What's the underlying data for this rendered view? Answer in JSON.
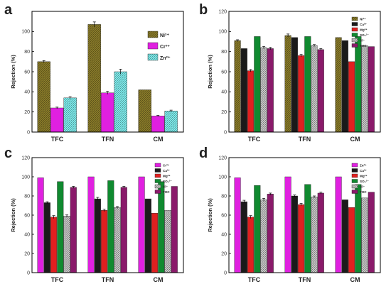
{
  "chart_data": [
    {
      "panel": "a",
      "type": "bar",
      "categories": [
        "TFC",
        "TFN",
        "CM"
      ],
      "ylabel": "Rejection (%)",
      "ylim": [
        0,
        120
      ],
      "yticks": [
        0,
        20,
        40,
        60,
        80,
        100
      ],
      "legend_position": "top-right",
      "series": [
        {
          "name": "Ni²⁺",
          "color": "#8b7d2a",
          "pattern": "hatch",
          "values": [
            70,
            107,
            42
          ],
          "errors": [
            1.0,
            2.5,
            0
          ]
        },
        {
          "name": "Cr³⁺",
          "color": "#e020e0",
          "pattern": "solid",
          "values": [
            24,
            39,
            16
          ],
          "errors": [
            0.8,
            1.5,
            0.5
          ]
        },
        {
          "name": "Zn²⁺",
          "color": "#80f0f0",
          "pattern": "hatch",
          "values": [
            34,
            60,
            21
          ],
          "errors": [
            1.2,
            2.5,
            0.8
          ]
        }
      ]
    },
    {
      "panel": "b",
      "type": "bar",
      "categories": [
        "TFC",
        "TFN",
        "CM"
      ],
      "ylabel": "Rejection (%)",
      "ylim": [
        0,
        120
      ],
      "yticks": [
        0,
        20,
        40,
        60,
        80,
        100,
        120
      ],
      "legend_position": "top-right",
      "series": [
        {
          "name": "Ni²⁺",
          "color": "#8b7d2a",
          "pattern": "hatch",
          "values": [
            91,
            96,
            94
          ],
          "errors": [
            0.8,
            1.5,
            0
          ]
        },
        {
          "name": "Ca²⁺",
          "color": "#1a1a1a",
          "pattern": "solid",
          "values": [
            83,
            94,
            91
          ],
          "errors": [
            0,
            0,
            0
          ]
        },
        {
          "name": "Mg²⁺",
          "color": "#e02020",
          "pattern": "solid",
          "values": [
            61,
            76,
            70
          ],
          "errors": [
            1.2,
            1.2,
            0
          ]
        },
        {
          "name": "SO₄²⁻",
          "color": "#108a30",
          "pattern": "solid",
          "values": [
            95,
            95,
            95
          ],
          "errors": [
            0,
            0,
            0
          ]
        },
        {
          "name": "Cl⁻",
          "color": "#c8c8c8",
          "pattern": "cross",
          "values": [
            84,
            86,
            86
          ],
          "errors": [
            1.2,
            1.0,
            0
          ]
        },
        {
          "name": "TOC",
          "color": "#8a1a6a",
          "pattern": "solid",
          "values": [
            83,
            82,
            85
          ],
          "errors": [
            1.2,
            1.0,
            0
          ]
        }
      ]
    },
    {
      "panel": "c",
      "type": "bar",
      "categories": [
        "TFC",
        "TFN",
        "CM"
      ],
      "ylabel": "Rejection (%)",
      "ylim": [
        0,
        120
      ],
      "yticks": [
        0,
        20,
        40,
        60,
        80,
        100,
        120
      ],
      "legend_position": "top-right",
      "series": [
        {
          "name": "Cr³⁺",
          "color": "#e020e0",
          "pattern": "solid",
          "values": [
            99,
            100,
            100
          ],
          "errors": [
            0,
            0,
            0
          ]
        },
        {
          "name": "Ca²⁺",
          "color": "#1a1a1a",
          "pattern": "solid",
          "values": [
            73,
            77,
            77
          ],
          "errors": [
            1.0,
            1.5,
            0
          ]
        },
        {
          "name": "Mg²⁺",
          "color": "#e02020",
          "pattern": "solid",
          "values": [
            58,
            65,
            62
          ],
          "errors": [
            1.5,
            1.2,
            0
          ]
        },
        {
          "name": "SO₄²⁻",
          "color": "#108a30",
          "pattern": "solid",
          "values": [
            95,
            96,
            95
          ],
          "errors": [
            0,
            0,
            0
          ]
        },
        {
          "name": "Cl⁻",
          "color": "#c8c8c8",
          "pattern": "cross",
          "values": [
            59,
            68,
            65
          ],
          "errors": [
            1.2,
            1.0,
            0
          ]
        },
        {
          "name": "TOC",
          "color": "#8a1a6a",
          "pattern": "solid",
          "values": [
            89,
            89,
            90
          ],
          "errors": [
            1.0,
            1.0,
            0
          ]
        }
      ]
    },
    {
      "panel": "d",
      "type": "bar",
      "categories": [
        "TFC",
        "TFN",
        "CM"
      ],
      "ylabel": "Rejection (%)",
      "ylim": [
        0,
        120
      ],
      "yticks": [
        0,
        20,
        40,
        60,
        80,
        100,
        120
      ],
      "legend_position": "top-right",
      "series": [
        {
          "name": "Zn²⁺",
          "color": "#e020e0",
          "pattern": "solid",
          "values": [
            99,
            100,
            100
          ],
          "errors": [
            0,
            0,
            0
          ]
        },
        {
          "name": "Ca²⁺",
          "color": "#1a1a1a",
          "pattern": "solid",
          "values": [
            74,
            80,
            76
          ],
          "errors": [
            1.5,
            1.0,
            0
          ]
        },
        {
          "name": "Mg²⁺",
          "color": "#e02020",
          "pattern": "solid",
          "values": [
            58,
            71,
            68
          ],
          "errors": [
            1.5,
            1.2,
            0
          ]
        },
        {
          "name": "SO₄²⁻",
          "color": "#108a30",
          "pattern": "solid",
          "values": [
            91,
            92,
            92
          ],
          "errors": [
            0,
            0,
            0
          ]
        },
        {
          "name": "Cl⁻",
          "color": "#c8c8c8",
          "pattern": "cross",
          "values": [
            76,
            79,
            78
          ],
          "errors": [
            1.5,
            1.0,
            0
          ]
        },
        {
          "name": "TOC",
          "color": "#8a1a6a",
          "pattern": "solid",
          "values": [
            82,
            83,
            84
          ],
          "errors": [
            1.0,
            1.0,
            0
          ]
        }
      ]
    }
  ]
}
